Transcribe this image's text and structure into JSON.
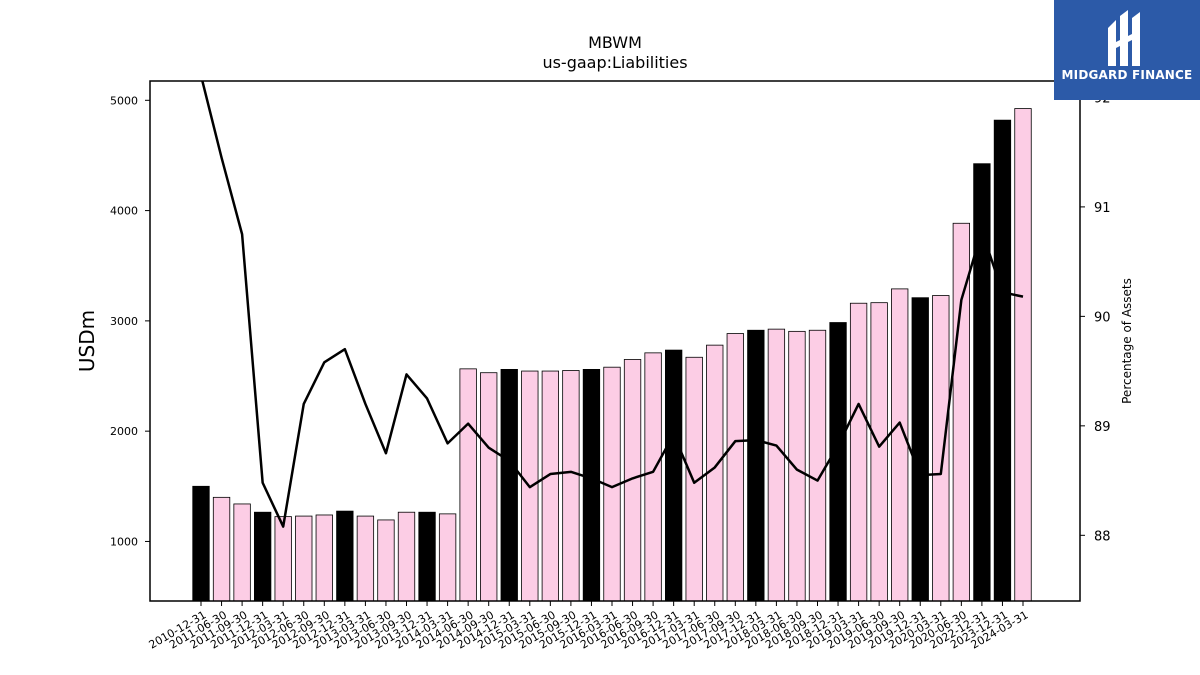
{
  "chart_data": {
    "type": "bar",
    "title": "MBWM",
    "subtitle": "us-gaap:Liabilities",
    "ylabel": "USDm",
    "y2label": "Percentage of Assets",
    "ylim": [
      460,
      5175
    ],
    "y2lim": [
      87.4,
      92.15
    ],
    "yticks": [
      1000,
      2000,
      3000,
      4000,
      5000
    ],
    "y2ticks": [
      88,
      89,
      90,
      91,
      92
    ],
    "categories": [
      "2010-12-31",
      "2011-06-30",
      "2011-09-30",
      "2011-12-31",
      "2012-03-31",
      "2012-06-30",
      "2012-09-30",
      "2012-12-31",
      "2013-03-31",
      "2013-06-30",
      "2013-09-30",
      "2013-12-31",
      "2014-03-31",
      "2014-06-30",
      "2014-09-30",
      "2014-12-31",
      "2015-03-31",
      "2015-06-30",
      "2015-09-30",
      "2015-12-31",
      "2016-03-31",
      "2016-06-30",
      "2016-09-30",
      "2016-12-31",
      "2017-03-31",
      "2017-06-30",
      "2017-09-30",
      "2017-12-31",
      "2018-03-31",
      "2018-06-30",
      "2018-09-30",
      "2018-12-31",
      "2019-03-31",
      "2019-06-30",
      "2019-09-30",
      "2019-12-31",
      "2020-03-31",
      "2020-06-30",
      "2022-12-31",
      "2023-12-31",
      "2024-03-31"
    ],
    "series": [
      {
        "type": "bar",
        "values": [
          1500,
          1400,
          1340,
          1265,
          1225,
          1230,
          1240,
          1275,
          1230,
          1195,
          1265,
          1265,
          1250,
          2565,
          2530,
          2560,
          2545,
          2545,
          2550,
          2560,
          2580,
          2650,
          2710,
          2735,
          2670,
          2780,
          2885,
          2915,
          2925,
          2905,
          2915,
          2985,
          3160,
          3165,
          3290,
          3210,
          3230,
          3885,
          4425,
          4820,
          4925
        ],
        "year_end": [
          true,
          false,
          false,
          true,
          false,
          false,
          false,
          true,
          false,
          false,
          false,
          true,
          false,
          false,
          false,
          true,
          false,
          false,
          false,
          true,
          false,
          false,
          false,
          true,
          false,
          false,
          false,
          true,
          false,
          false,
          false,
          true,
          false,
          false,
          false,
          true,
          false,
          false,
          true,
          true,
          false
        ]
      },
      {
        "type": "line",
        "values": [
          92.2,
          91.45,
          90.75,
          88.48,
          88.08,
          89.2,
          89.58,
          89.7,
          89.2,
          88.75,
          89.47,
          89.25,
          88.84,
          89.02,
          88.8,
          88.68,
          88.44,
          88.56,
          88.58,
          88.52,
          88.44,
          88.52,
          88.58,
          88.92,
          88.48,
          88.62,
          88.86,
          88.87,
          88.82,
          88.6,
          88.5,
          88.82,
          89.2,
          88.81,
          89.03,
          88.55,
          88.56,
          90.15,
          90.78,
          90.22,
          90.18
        ]
      }
    ],
    "colors": {
      "year_end_bar": "#000000",
      "bar": "#fccde5",
      "bar_edge": "#000000",
      "line": "#000000"
    }
  },
  "logo": {
    "text": "MIDGARD FINANCE"
  }
}
